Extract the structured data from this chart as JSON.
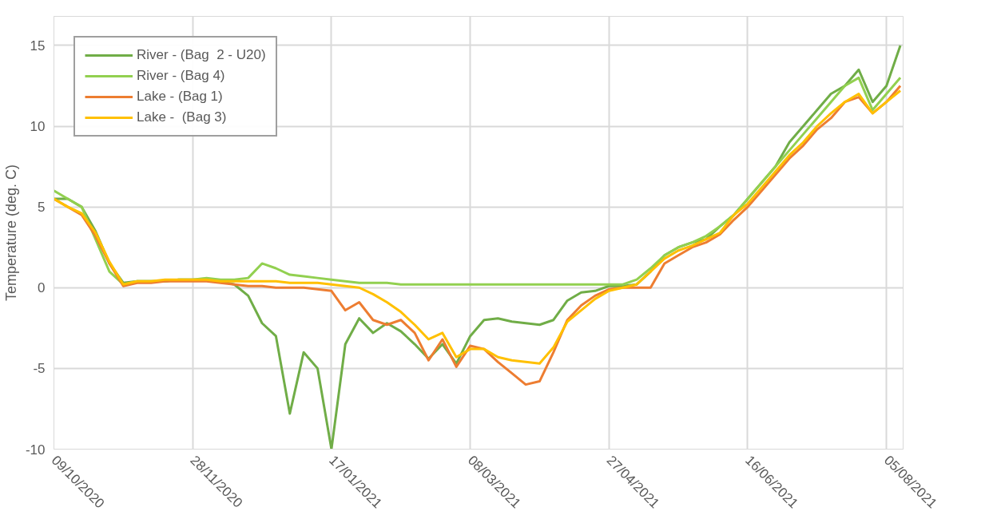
{
  "chart_data": {
    "type": "line",
    "ylabel": "Temperature (deg. C)",
    "x": [
      "2020-10-09",
      "2020-10-14",
      "2020-10-19",
      "2020-10-24",
      "2020-10-29",
      "2020-11-03",
      "2020-11-08",
      "2020-11-13",
      "2020-11-18",
      "2020-11-23",
      "2020-11-28",
      "2020-12-03",
      "2020-12-08",
      "2020-12-13",
      "2020-12-18",
      "2020-12-23",
      "2020-12-28",
      "2021-01-02",
      "2021-01-07",
      "2021-01-12",
      "2021-01-17",
      "2021-01-22",
      "2021-01-27",
      "2021-02-01",
      "2021-02-06",
      "2021-02-11",
      "2021-02-16",
      "2021-02-21",
      "2021-02-26",
      "2021-03-03",
      "2021-03-08",
      "2021-03-13",
      "2021-03-18",
      "2021-03-23",
      "2021-03-28",
      "2021-04-02",
      "2021-04-07",
      "2021-04-12",
      "2021-04-17",
      "2021-04-22",
      "2021-04-27",
      "2021-05-02",
      "2021-05-07",
      "2021-05-12",
      "2021-05-17",
      "2021-05-22",
      "2021-05-27",
      "2021-06-01",
      "2021-06-06",
      "2021-06-11",
      "2021-06-16",
      "2021-06-21",
      "2021-06-26",
      "2021-07-01",
      "2021-07-06",
      "2021-07-11",
      "2021-07-16",
      "2021-07-21",
      "2021-07-26",
      "2021-07-31",
      "2021-08-05",
      "2021-08-10"
    ],
    "series": [
      {
        "name": "River - (Bag  2 - U20)",
        "color": "#70ad47",
        "values": [
          5.5,
          5.5,
          5.0,
          3.5,
          1.5,
          0.3,
          0.4,
          0.4,
          0.4,
          0.5,
          0.5,
          0.5,
          0.4,
          0.2,
          -0.5,
          -2.2,
          -3.0,
          -7.8,
          -4.0,
          -5.0,
          -10.0,
          -3.5,
          -1.9,
          -2.8,
          -2.2,
          -2.7,
          -3.5,
          -4.4,
          -3.5,
          -4.7,
          -3.0,
          -2.0,
          -1.9,
          -2.1,
          -2.2,
          -2.3,
          -2.0,
          -0.8,
          -0.3,
          -0.2,
          0.1,
          0.1,
          0.2,
          1.0,
          2.0,
          2.5,
          2.8,
          3.0,
          3.8,
          4.5,
          5.5,
          6.5,
          7.5,
          9.0,
          10.0,
          11.0,
          12.0,
          12.5,
          13.5,
          11.5,
          12.5,
          15.0
        ]
      },
      {
        "name": "River - (Bag 4)",
        "color": "#92d050",
        "values": [
          6.0,
          5.5,
          5.0,
          3.0,
          1.0,
          0.2,
          0.4,
          0.4,
          0.4,
          0.5,
          0.5,
          0.6,
          0.5,
          0.5,
          0.6,
          1.5,
          1.2,
          0.8,
          0.7,
          0.6,
          0.5,
          0.4,
          0.3,
          0.3,
          0.3,
          0.2,
          0.2,
          0.2,
          0.2,
          0.2,
          0.2,
          0.2,
          0.2,
          0.2,
          0.2,
          0.2,
          0.2,
          0.2,
          0.2,
          0.2,
          0.2,
          0.2,
          0.5,
          1.2,
          2.0,
          2.5,
          2.8,
          3.2,
          3.8,
          4.5,
          5.5,
          6.5,
          7.5,
          8.5,
          9.5,
          10.5,
          11.5,
          12.5,
          13.0,
          11.0,
          12.0,
          13.0
        ]
      },
      {
        "name": "Lake - (Bag 1)",
        "color": "#ed7d31",
        "values": [
          5.5,
          5.0,
          4.5,
          3.2,
          1.5,
          0.1,
          0.3,
          0.3,
          0.4,
          0.4,
          0.4,
          0.4,
          0.3,
          0.2,
          0.1,
          0.1,
          0.0,
          0.0,
          0.0,
          -0.1,
          -0.2,
          -1.4,
          -0.9,
          -2.0,
          -2.3,
          -2.0,
          -2.8,
          -4.5,
          -3.2,
          -4.9,
          -3.6,
          -3.8,
          -4.6,
          -5.3,
          -6.0,
          -5.8,
          -4.0,
          -2.0,
          -1.1,
          -0.5,
          -0.1,
          0.0,
          0.0,
          0.0,
          1.5,
          2.0,
          2.5,
          2.8,
          3.3,
          4.2,
          5.0,
          6.0,
          7.0,
          8.0,
          8.8,
          9.8,
          10.5,
          11.5,
          11.8,
          10.8,
          11.5,
          12.5
        ]
      },
      {
        "name": "Lake -  (Bag 3)",
        "color": "#ffc000",
        "values": [
          5.5,
          5.0,
          4.6,
          3.4,
          1.6,
          0.2,
          0.4,
          0.4,
          0.5,
          0.5,
          0.5,
          0.5,
          0.4,
          0.4,
          0.4,
          0.4,
          0.4,
          0.3,
          0.3,
          0.3,
          0.2,
          0.1,
          0.0,
          -0.4,
          -0.9,
          -1.5,
          -2.3,
          -3.2,
          -2.8,
          -4.3,
          -3.8,
          -3.8,
          -4.3,
          -4.5,
          -4.6,
          -4.7,
          -3.7,
          -2.1,
          -1.4,
          -0.7,
          -0.2,
          0.0,
          0.2,
          1.0,
          1.8,
          2.3,
          2.6,
          3.0,
          3.4,
          4.5,
          5.2,
          6.2,
          7.2,
          8.2,
          9.0,
          10.0,
          10.8,
          11.5,
          12.0,
          10.8,
          11.5,
          12.2
        ]
      }
    ],
    "xlim": [
      "2020-10-09",
      "2021-08-11"
    ],
    "xticks": [
      {
        "value": "2020-10-09",
        "label": "09/10/2020"
      },
      {
        "value": "2020-11-28",
        "label": "28/11/2020"
      },
      {
        "value": "2021-01-17",
        "label": "17/01/2021"
      },
      {
        "value": "2021-03-08",
        "label": "08/03/2021"
      },
      {
        "value": "2021-04-27",
        "label": "27/04/2021"
      },
      {
        "value": "2021-06-16",
        "label": "16/06/2021"
      },
      {
        "value": "2021-08-05",
        "label": "05/08/2021"
      }
    ],
    "ylim": [
      -10,
      16.8
    ],
    "yticks": [
      -10,
      -5,
      0,
      5,
      10,
      15
    ],
    "grid": true,
    "legend": "top left",
    "line_style": "solid",
    "marker": "none"
  }
}
